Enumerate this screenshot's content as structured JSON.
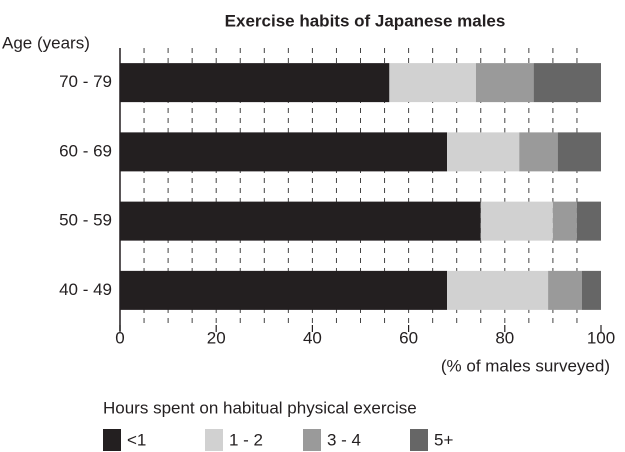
{
  "chart_data": {
    "type": "stacked_barh",
    "title": "Exercise habits of Japanese males",
    "ylabel": "Age (years)",
    "xlabel": "(% of males surveyed)",
    "legend_title": "Hours spent on habitual physical exercise",
    "categories": [
      "70 - 79",
      "60 - 69",
      "50 - 59",
      "40 - 49"
    ],
    "series": [
      {
        "name": "<1",
        "color": "#231f20",
        "values": [
          56,
          68,
          75,
          68
        ]
      },
      {
        "name": "1 - 2",
        "color": "#d1d1d1",
        "values": [
          18,
          15,
          15,
          21
        ]
      },
      {
        "name": "3 - 4",
        "color": "#9a9a9a",
        "values": [
          12,
          8,
          5,
          7
        ]
      },
      {
        "name": "5+",
        "color": "#666666",
        "values": [
          14,
          9,
          5,
          4
        ]
      }
    ],
    "xlim": [
      0,
      100
    ],
    "xticks": [
      0,
      20,
      40,
      60,
      80,
      100
    ],
    "grid_xticks": [
      5,
      10,
      15,
      20,
      25,
      30,
      35,
      40,
      45,
      50,
      55,
      60,
      65,
      70,
      75,
      80,
      85,
      90,
      95
    ],
    "grid": true,
    "legend": "bottom"
  }
}
